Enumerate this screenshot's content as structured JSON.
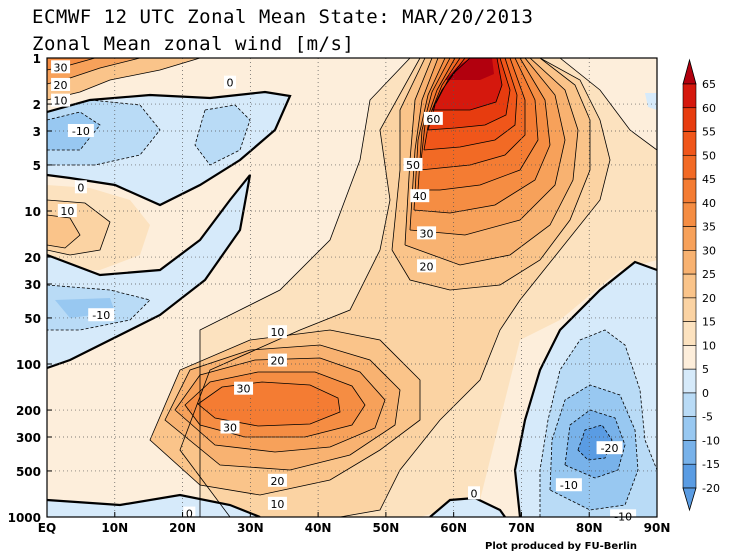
{
  "header": {
    "title": "ECMWF 12 UTC Zonal Mean State: MAR/20/2013",
    "subtitle": "Zonal Mean zonal wind [m/s]"
  },
  "credit": "Plot produced by FU-Berlin",
  "chart_data": {
    "type": "heatmap",
    "title": "ECMWF 12 UTC Zonal Mean State: MAR/20/2013",
    "subtitle": "Zonal Mean zonal wind [m/s]",
    "x_ticks": [
      "EQ",
      "10N",
      "20N",
      "30N",
      "40N",
      "50N",
      "60N",
      "70N",
      "80N",
      "90N"
    ],
    "x_values": [
      0,
      10,
      20,
      30,
      40,
      50,
      60,
      70,
      80,
      90
    ],
    "xlim": [
      0,
      90
    ],
    "y_ticks": [
      "1",
      "2",
      "3",
      "5",
      "10",
      "20",
      "30",
      "50",
      "100",
      "200",
      "300",
      "500",
      "1000"
    ],
    "y_values": [
      1,
      2,
      3,
      5,
      10,
      20,
      30,
      50,
      100,
      200,
      300,
      500,
      1000
    ],
    "ylim": [
      1000,
      1
    ],
    "y_scale": "log",
    "grid": true,
    "colorbar_levels": [
      65,
      60,
      55,
      50,
      45,
      40,
      35,
      30,
      25,
      20,
      15,
      10,
      5,
      0,
      -5,
      -10,
      -15,
      -20
    ],
    "colorbar_colors": [
      "#b2000e",
      "#d5180d",
      "#e73c0f",
      "#f0561a",
      "#f26a25",
      "#f47c33",
      "#f58d43",
      "#f7a15a",
      "#f8b271",
      "#fac48a",
      "#fbd3a3",
      "#fce2bf",
      "#fdeedb",
      "#d6eafa",
      "#b9dbf6",
      "#98c8f1",
      "#78b2ea",
      "#5a9ce3"
    ],
    "contour_labels": [
      {
        "text": "30",
        "lat": 2,
        "p": 1.15
      },
      {
        "text": "20",
        "lat": 2,
        "p": 1.5
      },
      {
        "text": "10",
        "lat": 2,
        "p": 1.9
      },
      {
        "text": "0",
        "lat": 27,
        "p": 1.45
      },
      {
        "text": "-10",
        "lat": 5,
        "p": 3
      },
      {
        "text": "60",
        "lat": 57,
        "p": 2.5
      },
      {
        "text": "50",
        "lat": 54,
        "p": 5
      },
      {
        "text": "40",
        "lat": 55,
        "p": 8
      },
      {
        "text": "30",
        "lat": 56,
        "p": 14
      },
      {
        "text": "20",
        "lat": 56,
        "p": 23
      },
      {
        "text": "0",
        "lat": 5,
        "p": 7
      },
      {
        "text": "10",
        "lat": 3,
        "p": 10
      },
      {
        "text": "-10",
        "lat": 8,
        "p": 48
      },
      {
        "text": "10",
        "lat": 34,
        "p": 62
      },
      {
        "text": "20",
        "lat": 34,
        "p": 95
      },
      {
        "text": "30",
        "lat": 29,
        "p": 145
      },
      {
        "text": "30",
        "lat": 27,
        "p": 260
      },
      {
        "text": "20",
        "lat": 34,
        "p": 580
      },
      {
        "text": "10",
        "lat": 34,
        "p": 820
      },
      {
        "text": "0",
        "lat": 21,
        "p": 950
      },
      {
        "text": "0",
        "lat": 63,
        "p": 700
      },
      {
        "text": "-20",
        "lat": 83,
        "p": 355
      },
      {
        "text": "-10",
        "lat": 77,
        "p": 620
      },
      {
        "text": "-10",
        "lat": 85,
        "p": 990
      }
    ]
  }
}
